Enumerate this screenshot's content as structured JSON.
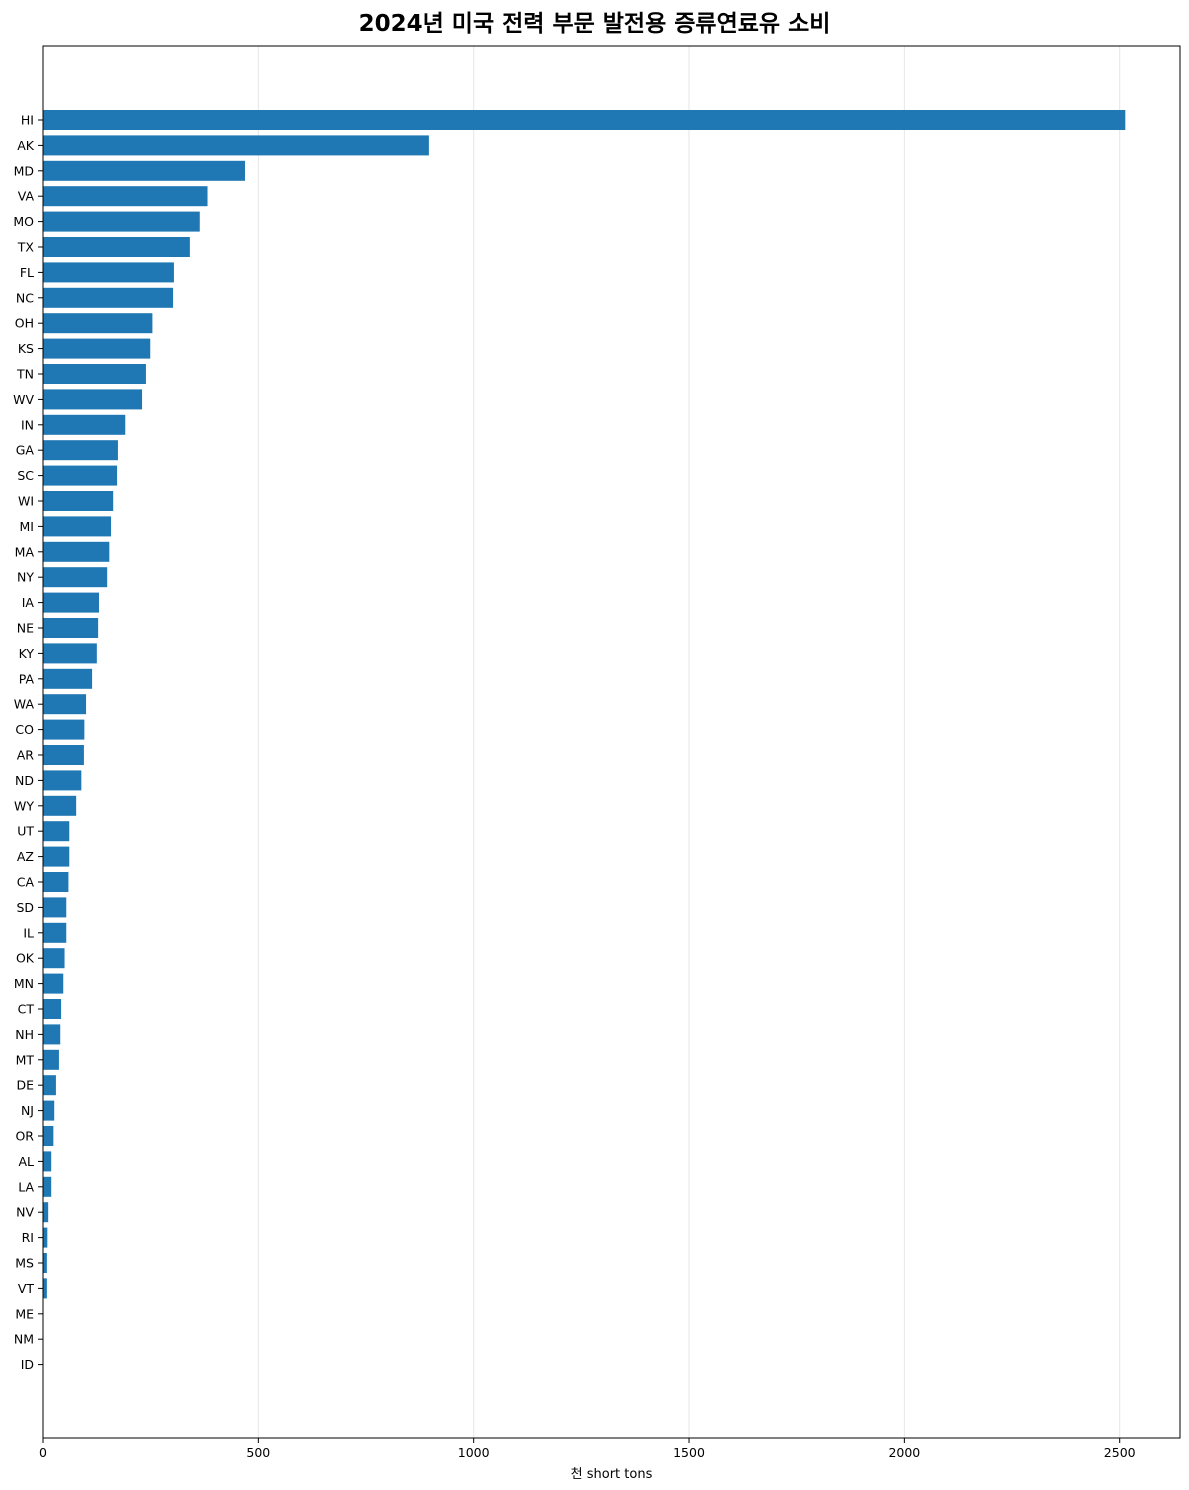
{
  "chart_data": {
    "type": "bar",
    "orientation": "horizontal",
    "title": "2024년 미국 전력 부문 발전용 증류연료유 소비",
    "xlabel": "천 short tons",
    "ylabel": "",
    "xlim": [
      0,
      2640
    ],
    "xticks": [
      0,
      500,
      1000,
      1500,
      2000,
      2500
    ],
    "grid": "x",
    "bar_color": "#1f77b4",
    "categories": [
      "HI",
      "AK",
      "MD",
      "VA",
      "MO",
      "TX",
      "FL",
      "NC",
      "OH",
      "KS",
      "TN",
      "WV",
      "IN",
      "GA",
      "SC",
      "WI",
      "MI",
      "MA",
      "NY",
      "IA",
      "NE",
      "KY",
      "PA",
      "WA",
      "CO",
      "AR",
      "ND",
      "WY",
      "UT",
      "AZ",
      "CA",
      "SD",
      "IL",
      "OK",
      "MN",
      "CT",
      "NH",
      "MT",
      "DE",
      "NJ",
      "OR",
      "AL",
      "LA",
      "NV",
      "RI",
      "MS",
      "VT",
      "ME",
      "NM",
      "ID"
    ],
    "values": [
      2513,
      896,
      469,
      382,
      364,
      341,
      304,
      302,
      254,
      249,
      239,
      230,
      191,
      174,
      172,
      163,
      158,
      154,
      149,
      130,
      128,
      125,
      114,
      100,
      96,
      95,
      89,
      77,
      61,
      61,
      59,
      54,
      54,
      50,
      47,
      42,
      40,
      37,
      30,
      26,
      24,
      19,
      19,
      12,
      10,
      9,
      9,
      1,
      1,
      0
    ]
  }
}
